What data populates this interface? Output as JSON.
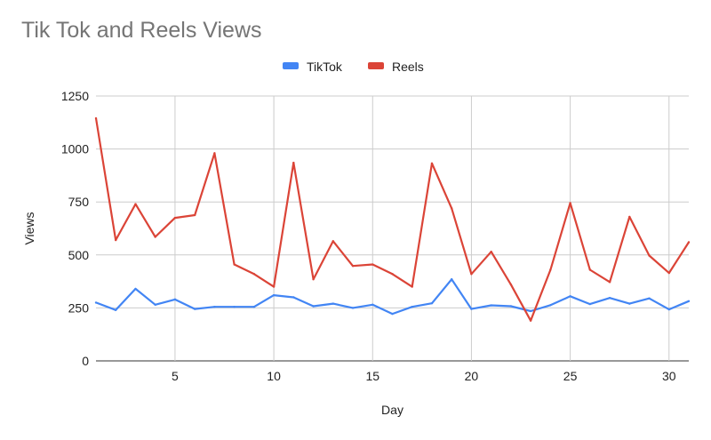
{
  "chart_data": {
    "type": "line",
    "title": "Tik Tok and Reels Views",
    "xlabel": "Day",
    "ylabel": "Views",
    "xlim": [
      1,
      31
    ],
    "ylim": [
      0,
      1250
    ],
    "x_ticks": [
      5,
      10,
      15,
      20,
      25,
      30
    ],
    "y_ticks": [
      0,
      250,
      500,
      750,
      1000,
      1250
    ],
    "grid": true,
    "legend_position": "top-center",
    "x": [
      1,
      2,
      3,
      4,
      5,
      6,
      7,
      8,
      9,
      10,
      11,
      12,
      13,
      14,
      15,
      16,
      17,
      18,
      19,
      20,
      21,
      22,
      23,
      24,
      25,
      26,
      27,
      28,
      29,
      30,
      31
    ],
    "series": [
      {
        "name": "TikTok",
        "color": "#4285f4",
        "values": [
          275,
          240,
          340,
          265,
          290,
          245,
          255,
          255,
          255,
          310,
          300,
          258,
          270,
          250,
          265,
          222,
          255,
          272,
          385,
          245,
          262,
          258,
          235,
          263,
          305,
          268,
          297,
          270,
          295,
          243,
          282
        ]
      },
      {
        "name": "Reels",
        "color": "#db4437",
        "values": [
          1145,
          570,
          740,
          585,
          675,
          688,
          980,
          455,
          410,
          350,
          935,
          385,
          565,
          448,
          455,
          410,
          350,
          932,
          720,
          410,
          515,
          360,
          190,
          430,
          745,
          430,
          372,
          680,
          497,
          415,
          560
        ]
      }
    ]
  }
}
